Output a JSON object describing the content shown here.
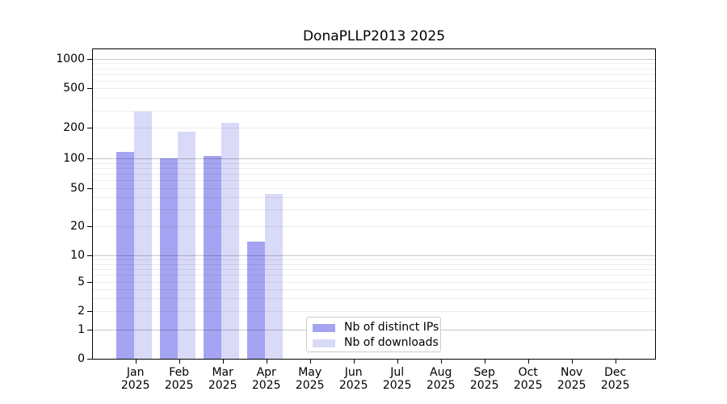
{
  "title": "DonaPLLP2013 2025",
  "chart_data": {
    "type": "bar",
    "scale": "symlog",
    "title": "DonaPLLP2013 2025",
    "categories": [
      "Jan",
      "Feb",
      "Mar",
      "Apr",
      "May",
      "Jun",
      "Jul",
      "Aug",
      "Sep",
      "Oct",
      "Nov",
      "Dec"
    ],
    "x_sublabel": "2025",
    "series": [
      {
        "name": "Nb of distinct IPs",
        "color": "#a4a4f2",
        "values": [
          115,
          101,
          105,
          14,
          0,
          0,
          0,
          0,
          0,
          0,
          0,
          0
        ]
      },
      {
        "name": "Nb of downloads",
        "color": "#d9d9f8",
        "values": [
          290,
          182,
          226,
          44,
          0,
          0,
          0,
          0,
          0,
          0,
          0,
          0
        ]
      }
    ],
    "y_ticks": [
      0,
      1,
      2,
      5,
      10,
      20,
      50,
      100,
      200,
      500,
      1000
    ],
    "ylim": [
      0,
      1270
    ],
    "xlabel": "",
    "ylabel": "",
    "grid": true,
    "legend_position": "lower-center"
  }
}
